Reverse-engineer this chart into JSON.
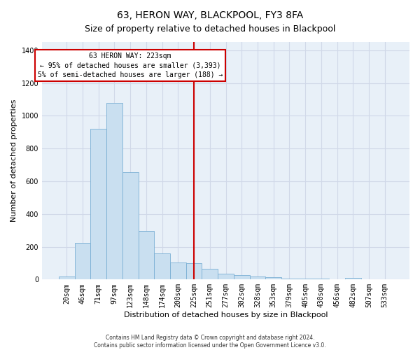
{
  "title": "63, HERON WAY, BLACKPOOL, FY3 8FA",
  "subtitle": "Size of property relative to detached houses in Blackpool",
  "xlabel": "Distribution of detached houses by size in Blackpool",
  "ylabel": "Number of detached properties",
  "footer_line1": "Contains HM Land Registry data © Crown copyright and database right 2024.",
  "footer_line2": "Contains public sector information licensed under the Open Government Licence v3.0.",
  "bar_labels": [
    "20sqm",
    "46sqm",
    "71sqm",
    "97sqm",
    "123sqm",
    "148sqm",
    "174sqm",
    "200sqm",
    "225sqm",
    "251sqm",
    "277sqm",
    "302sqm",
    "328sqm",
    "353sqm",
    "379sqm",
    "405sqm",
    "430sqm",
    "456sqm",
    "482sqm",
    "507sqm",
    "533sqm"
  ],
  "bar_values": [
    18,
    225,
    920,
    1080,
    655,
    295,
    160,
    105,
    100,
    65,
    35,
    25,
    20,
    15,
    5,
    5,
    5,
    3,
    10,
    3,
    0
  ],
  "bar_color": "#c9dff0",
  "bar_edge_color": "#7aafd4",
  "grid_color": "#d0d8e8",
  "bg_color": "#e8f0f8",
  "vline_x_index": 8,
  "vline_color": "#cc0000",
  "annotation_text": "63 HERON WAY: 223sqm\n← 95% of detached houses are smaller (3,393)\n5% of semi-detached houses are larger (188) →",
  "annotation_box_color": "#cc0000",
  "ylim": [
    0,
    1450
  ],
  "yticks": [
    0,
    200,
    400,
    600,
    800,
    1000,
    1200,
    1400
  ],
  "title_fontsize": 10,
  "subtitle_fontsize": 9,
  "axis_label_fontsize": 8,
  "tick_fontsize": 7,
  "annotation_fontsize": 7,
  "footer_fontsize": 5.5
}
